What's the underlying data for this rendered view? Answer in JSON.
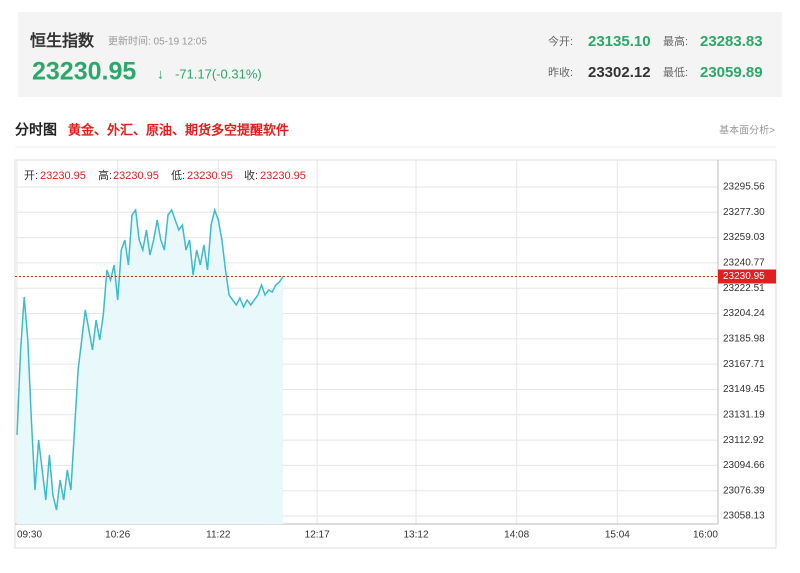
{
  "header": {
    "title": "恒生指数",
    "update_time": "更新时间: 05-19 12:05",
    "price": "23230.95",
    "arrow": "↓",
    "change": "-71.17(-0.31%)",
    "stats": [
      {
        "label": "今开:",
        "value": "23135.10"
      },
      {
        "label": "最高:",
        "value": "23283.83"
      },
      {
        "label": "昨收:",
        "value": "23302.12"
      },
      {
        "label": "最低:",
        "value": "23059.89"
      }
    ]
  },
  "section": {
    "title": "分时图",
    "promo": "黄金、外汇、原油、期货多空提醒软件",
    "link": "基本面分析>"
  },
  "chart_data": {
    "type": "line",
    "info": [
      {
        "label": "开:",
        "value": "23230.95"
      },
      {
        "label": "高:",
        "value": "23230.95"
      },
      {
        "label": "低:",
        "value": "23230.95"
      },
      {
        "label": "收:",
        "value": "23230.95"
      }
    ],
    "x": [
      "09:30",
      "09:32",
      "09:34",
      "09:36",
      "09:38",
      "09:40",
      "09:42",
      "09:44",
      "09:46",
      "09:48",
      "09:50",
      "09:52",
      "09:54",
      "09:56",
      "09:58",
      "10:00",
      "10:02",
      "10:04",
      "10:06",
      "10:08",
      "10:10",
      "10:12",
      "10:14",
      "10:16",
      "10:18",
      "10:20",
      "10:22",
      "10:24",
      "10:26",
      "10:28",
      "10:30",
      "10:32",
      "10:34",
      "10:36",
      "10:38",
      "10:40",
      "10:42",
      "10:44",
      "10:46",
      "10:48",
      "10:50",
      "10:52",
      "10:54",
      "10:56",
      "10:58",
      "11:00",
      "11:02",
      "11:04",
      "11:06",
      "11:08",
      "11:10",
      "11:12",
      "11:14",
      "11:16",
      "11:18",
      "11:20",
      "11:22",
      "11:24",
      "11:26",
      "11:28",
      "11:30",
      "11:32",
      "11:34",
      "11:36",
      "11:38",
      "11:40",
      "11:42",
      "11:44",
      "11:46",
      "11:48",
      "11:50",
      "11:52",
      "11:54",
      "11:56",
      "11:58"
    ],
    "series": [
      {
        "color": "#3bbccb",
        "values": [
          23116.6,
          23177.94,
          23216.18,
          23185.16,
          23127.43,
          23076.92,
          23113.0,
          23091.35,
          23069.7,
          23102.17,
          23073.31,
          23062.48,
          23084.13,
          23069.7,
          23091.35,
          23076.92,
          23120.21,
          23163.51,
          23185.16,
          23206.8,
          23192.37,
          23177.94,
          23199.59,
          23185.16,
          23203.2,
          23235.67,
          23228.45,
          23239.28,
          23214.02,
          23250.1,
          23257.32,
          23239.28,
          23275.36,
          23278.96,
          23257.32,
          23250.1,
          23264.53,
          23246.49,
          23257.32,
          23271.75,
          23257.32,
          23250.1,
          23275.36,
          23278.96,
          23271.75,
          23264.53,
          23268.14,
          23250.1,
          23257.32,
          23232.06,
          23250.1,
          23239.28,
          23253.71,
          23235.67,
          23268.14,
          23278.96,
          23271.75,
          23257.32,
          23235.67,
          23217.63,
          23214.02,
          23210.41,
          23215.46,
          23208.97,
          23214.02,
          23210.41,
          23214.02,
          23217.63,
          23224.84,
          23217.63,
          23221.24,
          23219.79,
          23224.84,
          23227.01,
          23230.95
        ]
      }
    ],
    "current": 23230.95,
    "xlim": [
      "09:30",
      "16:00"
    ],
    "xticks": [
      "09:30",
      "10:26",
      "11:22",
      "12:17",
      "13:12",
      "14:08",
      "15:04",
      "16:00"
    ],
    "ylim": [
      23052.4,
      23315.0
    ],
    "yticks": [
      23295.56,
      {
        "value": 23277.3,
        "label": "23277.30"
      },
      23259.03,
      23240.77,
      23222.51,
      23204.24,
      23185.98,
      23167.71,
      23149.45,
      23131.19,
      23112.92,
      23094.66,
      23076.39,
      23058.13
    ],
    "grid": true
  }
}
